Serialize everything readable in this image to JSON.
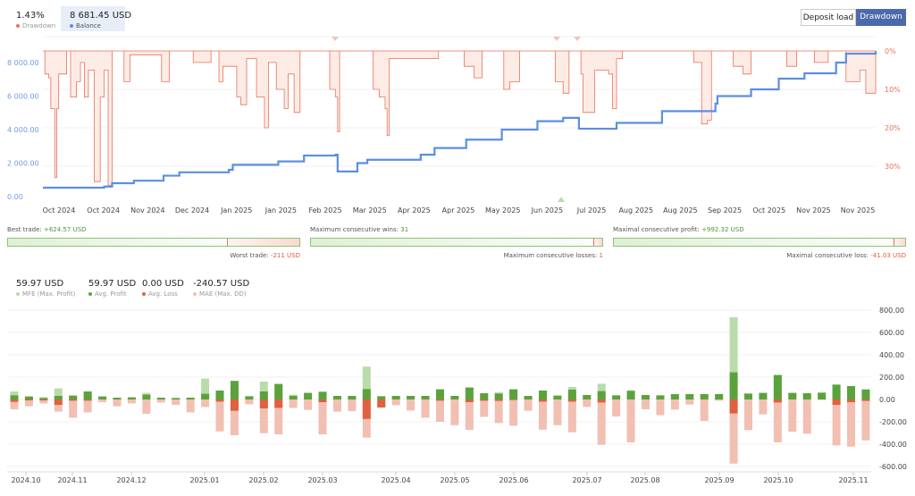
{
  "header": {
    "drawdown": {
      "value": "1.43%",
      "label": "Drawdown",
      "color": "#e8735a"
    },
    "balance": {
      "value": "8 681.45 USD",
      "label": "Balance",
      "color": "#5b8fe0"
    },
    "buttons": [
      {
        "label": "Deposit load",
        "active": false
      },
      {
        "label": "Drawdown",
        "active": true
      }
    ]
  },
  "stats": [
    {
      "top_label": "Best trade:",
      "top_value": "+624.57 USD",
      "bottom_label": "Worst trade:",
      "bottom_value": "-211 USD",
      "green_fraction": 0.75
    },
    {
      "top_label": "Maximum consecutive wins:",
      "top_value": "31",
      "bottom_label": "Maximum consecutive losses:",
      "bottom_value": "1",
      "green_fraction": 0.97
    },
    {
      "top_label": "Maximal consecutive profit:",
      "top_value": "+992.32 USD",
      "bottom_label": "Maximal consecutive loss:",
      "bottom_value": "-41.03 USD",
      "green_fraction": 0.96
    }
  ],
  "legend": [
    {
      "value": "59.97 USD",
      "label": "MFE (Max. Profit)",
      "color": "#b9dcaa"
    },
    {
      "value": "59.97 USD",
      "label": "Avg. Profit",
      "color": "#5aa33c"
    },
    {
      "value": "0.00 USD",
      "label": "Avg. Loss",
      "color": "#e0603f"
    },
    {
      "value": "-240.57 USD",
      "label": "MAE (Max. DD)",
      "color": "#f2bfb3"
    }
  ],
  "chart_data": [
    {
      "type": "line",
      "left_axis": {
        "ticks": [
          "8 000.00",
          "6 000.00",
          "4 000.00",
          "2 000.00",
          "0.00"
        ],
        "range": [
          0,
          8681.45
        ],
        "color": "#5b8fe0"
      },
      "right_axis": {
        "ticks": [
          "0%",
          "10%",
          "20%",
          "30%"
        ],
        "range": [
          0,
          30
        ],
        "inverted": true,
        "color": "#e8735a"
      },
      "x_ticks": [
        "Oct 2024",
        "Oct 2024",
        "Nov 2024",
        "Dec 2024",
        "Jan 2025",
        "Jan 2025",
        "Feb 2025",
        "Mar 2025",
        "Apr 2025",
        "Apr 2025",
        "May 2025",
        "Jun 2025",
        "Jul 2025",
        "Aug 2025",
        "Aug 2025",
        "Sep 2025",
        "Oct 2025",
        "Nov 2025",
        "Nov 2025"
      ],
      "x_range": [
        "2024-09-25",
        "2025-11-20"
      ],
      "series": [
        {
          "name": "Balance",
          "color": "#5b8fe0",
          "points": [
            [
              "2024-09-25",
              533
            ],
            [
              "2024-10-26",
              600
            ],
            [
              "2024-10-30",
              800
            ],
            [
              "2024-11-10",
              950
            ],
            [
              "2024-11-25",
              1250
            ],
            [
              "2024-12-03",
              1450
            ],
            [
              "2024-12-28",
              1600
            ],
            [
              "2024-12-30",
              1900
            ],
            [
              "2025-01-22",
              2100
            ],
            [
              "2025-02-04",
              2450
            ],
            [
              "2025-02-20",
              2500
            ],
            [
              "2025-02-21",
              1500
            ],
            [
              "2025-03-03",
              2000
            ],
            [
              "2025-03-08",
              2200
            ],
            [
              "2025-04-04",
              2500
            ],
            [
              "2025-04-11",
              2900
            ],
            [
              "2025-04-27",
              3400
            ],
            [
              "2025-05-15",
              4000
            ],
            [
              "2025-06-02",
              4500
            ],
            [
              "2025-06-15",
              4700
            ],
            [
              "2025-06-23",
              4050
            ],
            [
              "2025-07-12",
              4400
            ],
            [
              "2025-08-04",
              5100
            ],
            [
              "2025-08-31",
              5550
            ],
            [
              "2025-09-01",
              6000
            ],
            [
              "2025-09-18",
              6400
            ],
            [
              "2025-10-02",
              7040
            ],
            [
              "2025-10-15",
              7360
            ],
            [
              "2025-10-31",
              8000
            ],
            [
              "2025-11-05",
              8530
            ],
            [
              "2025-11-20",
              8681.45
            ]
          ]
        },
        {
          "name": "Drawdown",
          "color": "#e8735a",
          "unit": "%",
          "points": [
            [
              "2024-09-25",
              0
            ],
            [
              "2024-09-26",
              6
            ],
            [
              "2024-09-28",
              7
            ],
            [
              "2024-09-29",
              15
            ],
            [
              "2024-10-01",
              33
            ],
            [
              "2024-10-02",
              15
            ],
            [
              "2024-10-03",
              6
            ],
            [
              "2024-10-07",
              0
            ],
            [
              "2024-10-09",
              12
            ],
            [
              "2024-10-12",
              8
            ],
            [
              "2024-10-14",
              3
            ],
            [
              "2024-10-16",
              12
            ],
            [
              "2024-10-18",
              5
            ],
            [
              "2024-10-21",
              34
            ],
            [
              "2024-10-23",
              34
            ],
            [
              "2024-10-24",
              12
            ],
            [
              "2024-10-26",
              5
            ],
            [
              "2024-10-28",
              35
            ],
            [
              "2024-10-30",
              0
            ],
            [
              "2024-11-05",
              8
            ],
            [
              "2024-11-08",
              1
            ],
            [
              "2024-11-24",
              8
            ],
            [
              "2024-11-26",
              8
            ],
            [
              "2024-11-28",
              0
            ],
            [
              "2024-12-10",
              3
            ],
            [
              "2024-12-19",
              0
            ],
            [
              "2024-12-23",
              8
            ],
            [
              "2024-12-25",
              4
            ],
            [
              "2025-01-01",
              12
            ],
            [
              "2025-01-03",
              14
            ],
            [
              "2025-01-06",
              2
            ],
            [
              "2025-01-11",
              12
            ],
            [
              "2025-01-15",
              20
            ],
            [
              "2025-01-17",
              3
            ],
            [
              "2025-01-21",
              10
            ],
            [
              "2025-01-25",
              15
            ],
            [
              "2025-01-27",
              6
            ],
            [
              "2025-01-30",
              16
            ],
            [
              "2025-02-02",
              0
            ],
            [
              "2025-02-17",
              10
            ],
            [
              "2025-02-20",
              12
            ],
            [
              "2025-02-21",
              21
            ],
            [
              "2025-02-22",
              0
            ],
            [
              "2025-03-11",
              10
            ],
            [
              "2025-03-14",
              12
            ],
            [
              "2025-03-17",
              15
            ],
            [
              "2025-03-18",
              22
            ],
            [
              "2025-03-19",
              2
            ],
            [
              "2025-04-04",
              2
            ],
            [
              "2025-04-13",
              0
            ],
            [
              "2025-04-26",
              4
            ],
            [
              "2025-05-01",
              7
            ],
            [
              "2025-05-05",
              0
            ],
            [
              "2025-05-16",
              10
            ],
            [
              "2025-05-19",
              8
            ],
            [
              "2025-05-24",
              0
            ],
            [
              "2025-06-11",
              8
            ],
            [
              "2025-06-15",
              11
            ],
            [
              "2025-06-18",
              0
            ],
            [
              "2025-06-24",
              6
            ],
            [
              "2025-06-25",
              16
            ],
            [
              "2025-06-29",
              16
            ],
            [
              "2025-07-01",
              5
            ],
            [
              "2025-07-08",
              6
            ],
            [
              "2025-07-10",
              15
            ],
            [
              "2025-07-12",
              2
            ],
            [
              "2025-07-15",
              0
            ],
            [
              "2025-08-20",
              3
            ],
            [
              "2025-08-24",
              19
            ],
            [
              "2025-08-27",
              18
            ],
            [
              "2025-08-29",
              0
            ],
            [
              "2025-09-09",
              4
            ],
            [
              "2025-09-14",
              6
            ],
            [
              "2025-09-18",
              0
            ],
            [
              "2025-10-06",
              4
            ],
            [
              "2025-10-11",
              0
            ],
            [
              "2025-10-20",
              3
            ],
            [
              "2025-10-27",
              0
            ],
            [
              "2025-11-05",
              8
            ],
            [
              "2025-11-12",
              5
            ],
            [
              "2025-11-15",
              11
            ],
            [
              "2025-11-19",
              11
            ],
            [
              "2025-11-20",
              4
            ]
          ]
        }
      ]
    },
    {
      "type": "bar",
      "y_ticks": [
        "800.00",
        "600.00",
        "400.00",
        "200.00",
        "0.00",
        "-200.00",
        "-400.00",
        "-600.00"
      ],
      "ylim": [
        -600,
        800
      ],
      "x_ticks": [
        "2024.10",
        "2024.11",
        "2024.12",
        "2025.01",
        "2025.02",
        "2025.03",
        "2025.04",
        "2025.05",
        "2025.06",
        "2025.07",
        "2025.08",
        "2025.09",
        "2025.10",
        "2025.11"
      ],
      "series": [
        {
          "name": "MFE (Max. Profit)",
          "color": "#b9dcaa",
          "values": [
            72,
            27,
            21,
            99,
            35,
            72,
            27,
            16,
            19,
            59,
            16,
            13,
            16,
            187,
            80,
            166,
            29,
            160,
            139,
            43,
            59,
            69,
            32,
            32,
            294,
            29,
            32,
            32,
            32,
            91,
            32,
            107,
            56,
            64,
            91,
            32,
            80,
            35,
            112,
            40,
            141,
            37,
            83,
            40,
            37,
            48,
            48,
            48,
            48,
            737,
            53,
            59,
            219,
            59,
            56,
            61,
            133,
            120,
            93
          ]
        },
        {
          "name": "Avg. Profit",
          "color": "#5aa33c",
          "values": [
            37,
            27,
            13,
            32,
            35,
            72,
            27,
            16,
            19,
            43,
            16,
            13,
            16,
            51,
            80,
            166,
            29,
            72,
            139,
            32,
            59,
            69,
            32,
            32,
            93,
            29,
            32,
            32,
            32,
            91,
            32,
            107,
            56,
            53,
            91,
            32,
            80,
            35,
            88,
            40,
            75,
            37,
            77,
            40,
            37,
            48,
            48,
            48,
            48,
            243,
            53,
            59,
            219,
            59,
            56,
            61,
            133,
            120,
            88
          ]
        },
        {
          "name": "Avg. Loss",
          "color": "#e0603f",
          "values": [
            -21,
            -8,
            -8,
            -48,
            -11,
            -11,
            0,
            0,
            0,
            0,
            0,
            0,
            0,
            0,
            -19,
            -101,
            0,
            -80,
            -75,
            0,
            0,
            -24,
            0,
            0,
            -174,
            -72,
            0,
            0,
            0,
            -11,
            0,
            -24,
            -11,
            -13,
            -5,
            0,
            -19,
            0,
            -19,
            0,
            -27,
            0,
            0,
            0,
            0,
            0,
            0,
            0,
            0,
            -125,
            0,
            0,
            -27,
            0,
            0,
            0,
            -48,
            -24,
            -13
          ]
        },
        {
          "name": "MAE (Max. DD)",
          "color": "#f2bfb3",
          "values": [
            -88,
            -61,
            -35,
            -109,
            -163,
            -115,
            -24,
            -61,
            -35,
            -128,
            -27,
            -48,
            -115,
            -67,
            -286,
            -320,
            -43,
            -302,
            -312,
            -75,
            -93,
            -312,
            -109,
            -104,
            -342,
            -72,
            -51,
            -99,
            -163,
            -200,
            -230,
            -272,
            -155,
            -211,
            -235,
            -101,
            -270,
            -230,
            -294,
            -67,
            -406,
            -152,
            -384,
            -88,
            -141,
            -91,
            -45,
            -192,
            -11,
            -574,
            -275,
            -133,
            -384,
            -288,
            -307,
            -3,
            -411,
            -422,
            -366
          ]
        }
      ]
    }
  ]
}
